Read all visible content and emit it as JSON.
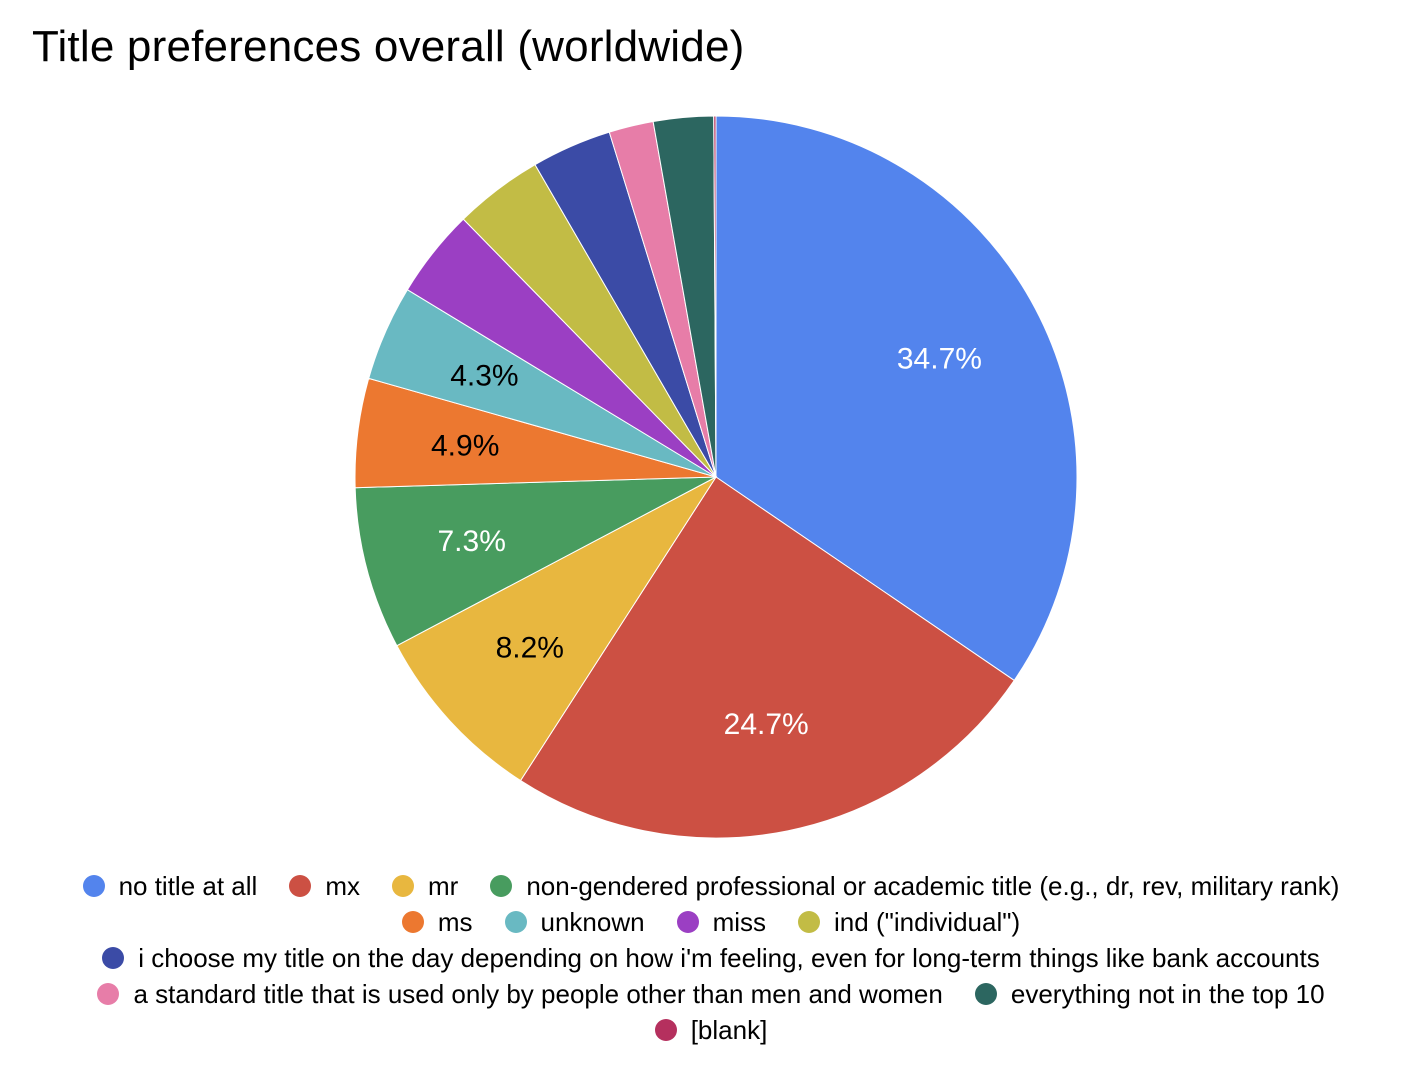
{
  "chart_data": {
    "type": "pie",
    "title": "Title preferences overall (worldwide)",
    "legend_position": "bottom",
    "slices": [
      {
        "label": "no title at all",
        "value": 34.7,
        "color": "#5384ED",
        "data_label": "34.7%",
        "label_color": "#ffffff"
      },
      {
        "label": "mx",
        "value": 24.7,
        "color": "#CC5043",
        "data_label": "24.7%",
        "label_color": "#ffffff"
      },
      {
        "label": "mr",
        "value": 8.2,
        "color": "#E8B73F",
        "data_label": "8.2%",
        "label_color": "#000000"
      },
      {
        "label": "non-gendered professional or academic title (e.g., dr, rev, military rank)",
        "value": 7.3,
        "color": "#489C5F",
        "data_label": "7.3%",
        "label_color": "#ffffff"
      },
      {
        "label": "ms",
        "value": 4.9,
        "color": "#EC7830",
        "data_label": "4.9%",
        "label_color": "#000000"
      },
      {
        "label": "unknown",
        "value": 4.3,
        "color": "#69B9C2",
        "data_label": "4.3%",
        "label_color": "#000000"
      },
      {
        "label": "miss",
        "value": 4.0,
        "color": "#9B3FC3",
        "data_label": "",
        "label_color": "#000000"
      },
      {
        "label": "ind (\"individual\")",
        "value": 4.0,
        "color": "#C2BC45",
        "data_label": "",
        "label_color": "#000000"
      },
      {
        "label": "i choose my title on the day depending on how i'm feeling, even for long-term things like bank accounts",
        "value": 3.6,
        "color": "#3B4BA6",
        "data_label": "",
        "label_color": "#000000"
      },
      {
        "label": "a standard title that is used only by people other than men and women",
        "value": 2.0,
        "color": "#E77DA8",
        "data_label": "",
        "label_color": "#000000"
      },
      {
        "label": "everything not in the top 10",
        "value": 2.7,
        "color": "#2C6660",
        "data_label": "",
        "label_color": "#000000"
      },
      {
        "label": "[blank]",
        "value": 0.1,
        "color": "#B5305E",
        "data_label": "",
        "label_color": "#000000"
      }
    ],
    "legend_rows": [
      [
        0,
        1,
        2,
        3
      ],
      [
        4,
        5,
        6,
        7
      ],
      [
        8
      ],
      [
        9,
        10
      ],
      [
        11
      ]
    ]
  }
}
